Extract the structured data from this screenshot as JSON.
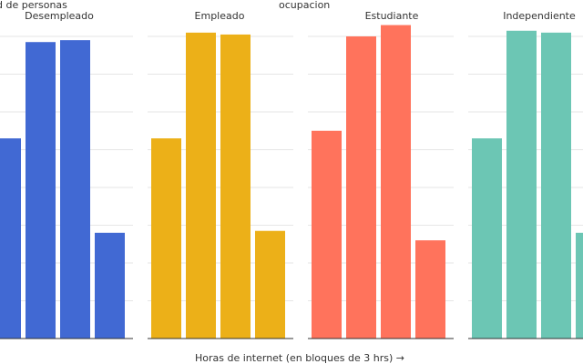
{
  "chart_data": {
    "type": "bar",
    "ylabel": "d de personas",
    "xlabel": "Horas de internet (en bloques de 3 hrs) →",
    "legend_title": "ocupacion",
    "grid": true,
    "ylim": [
      0,
      8000
    ],
    "facets": [
      {
        "name": "Desempleado",
        "color": "#4169D3",
        "values": [
          5300,
          7850,
          7900,
          2800
        ]
      },
      {
        "name": "Empleado",
        "color": "#ECB018",
        "values": [
          5300,
          8100,
          8050,
          2850
        ]
      },
      {
        "name": "Estudiante",
        "color": "#FF735C",
        "values": [
          5500,
          8000,
          8300,
          2600
        ]
      },
      {
        "name": "Independiente",
        "color": "#6CC6B4",
        "values": [
          5300,
          8150,
          8100,
          2800
        ]
      }
    ]
  }
}
